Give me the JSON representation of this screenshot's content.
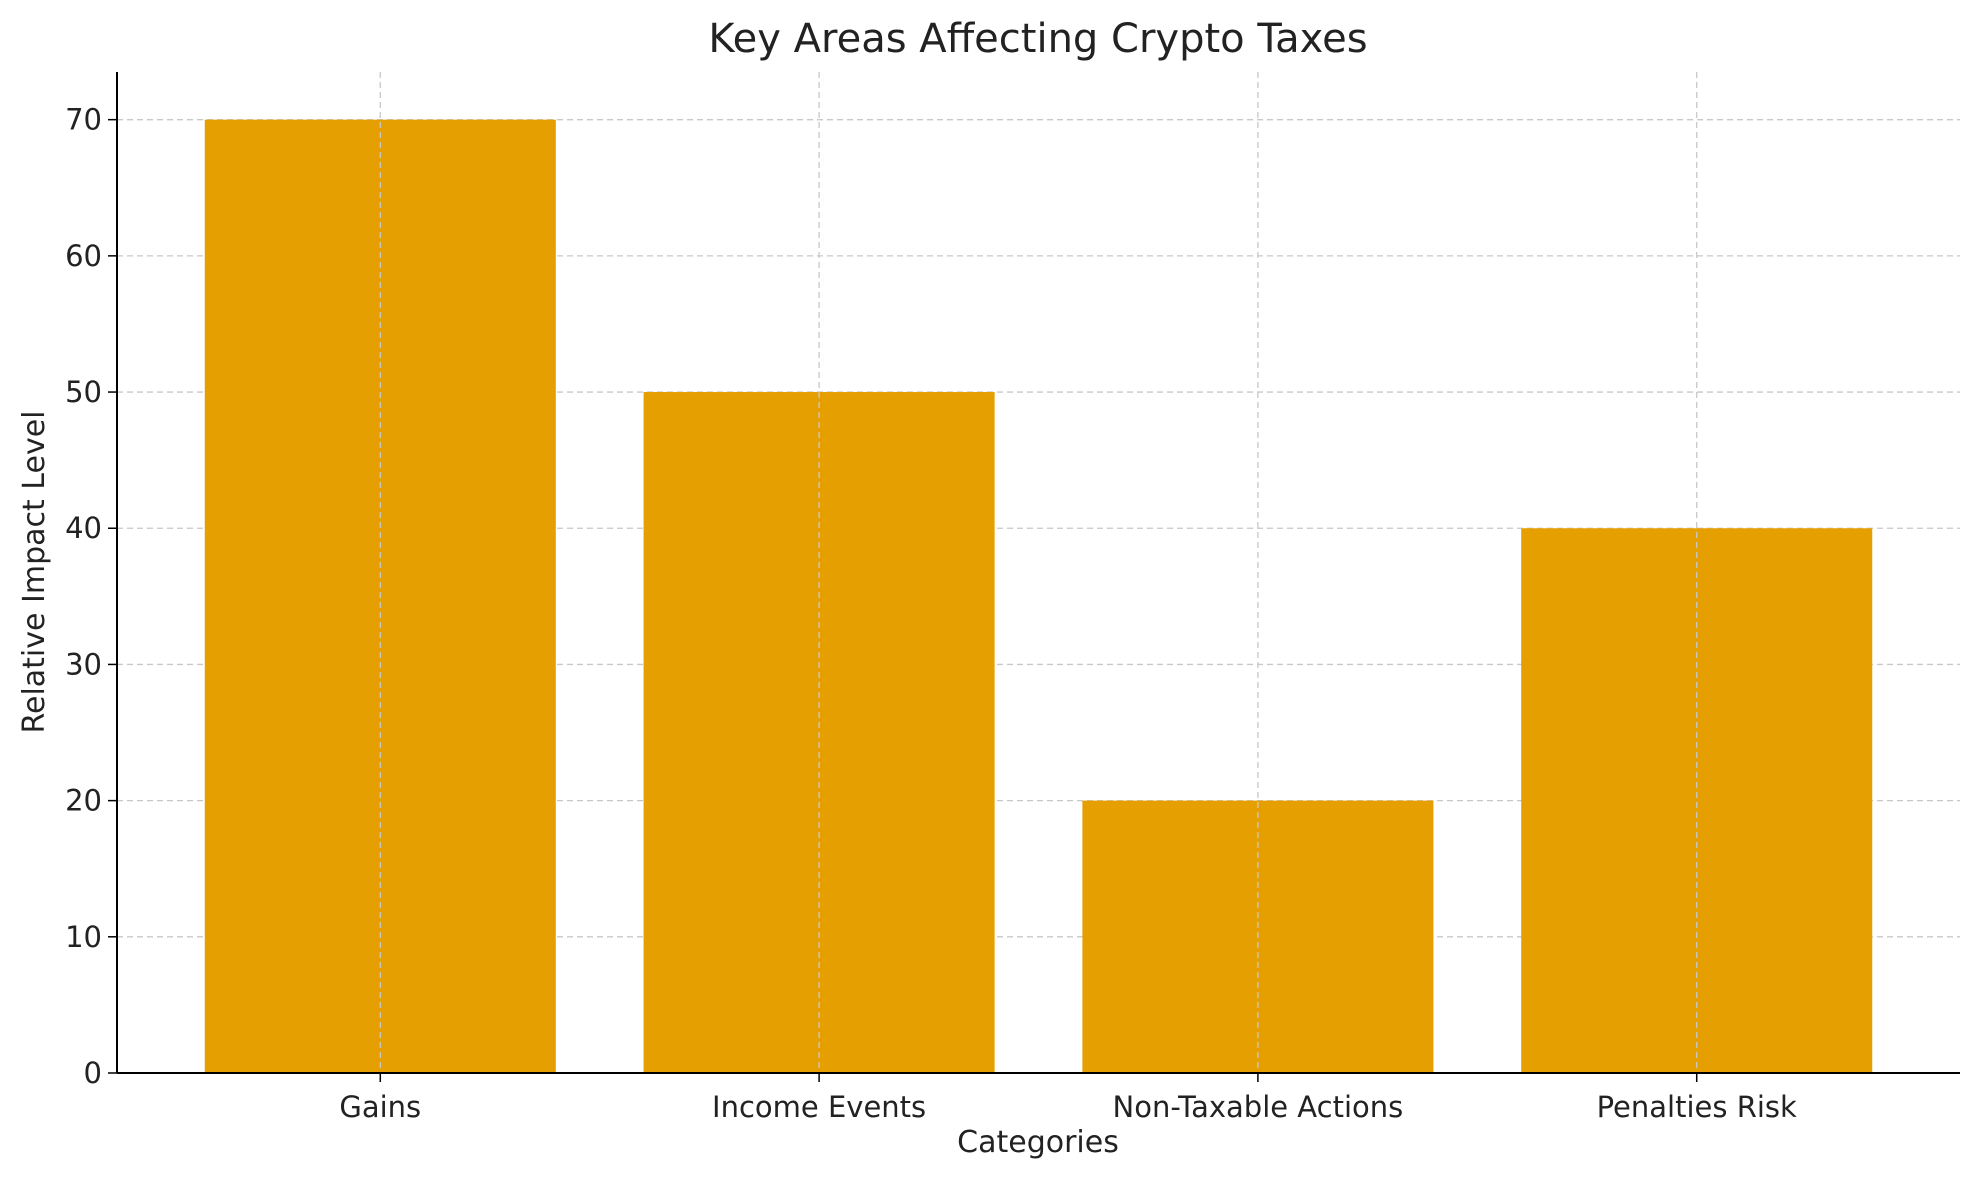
{
  "chart_data": {
    "type": "bar",
    "title": "Key Areas Affecting Crypto Taxes",
    "xlabel": "Categories",
    "ylabel": "Relative Impact Level",
    "categories": [
      "Gains",
      "Income Events",
      "Non-Taxable Actions",
      "Penalties Risk"
    ],
    "values": [
      70,
      50,
      20,
      40
    ],
    "ylim": [
      0,
      73.5
    ],
    "yticks": [
      0,
      10,
      20,
      30,
      40,
      50,
      60,
      70
    ],
    "grid": true,
    "legend": "none",
    "colors": {
      "bar": "#E69F00",
      "grid": "#c8c8c8",
      "axis": "#000000",
      "text": "#222222"
    }
  }
}
